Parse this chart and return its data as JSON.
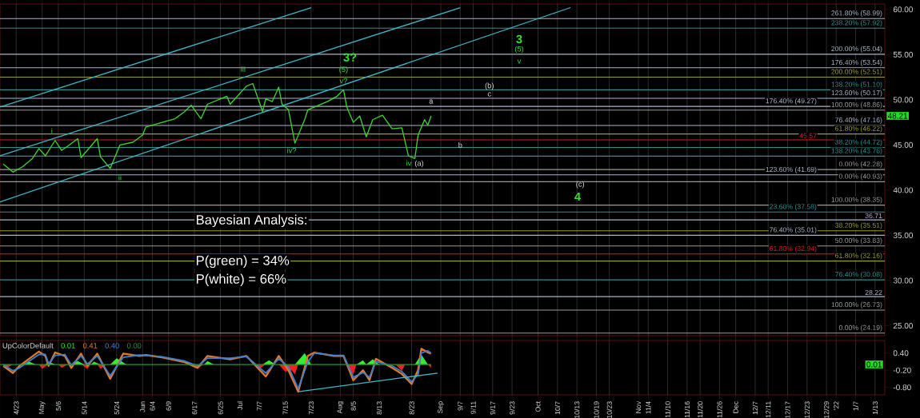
{
  "chart_data": [
    {
      "type": "line",
      "xlim": [
        "2021-04-18",
        "2022-01-16"
      ],
      "ylim": [
        23.9,
        60.6
      ],
      "tick_labels": "y",
      "grid": "x",
      "xticks": [
        {
          "value": "2021-04-23",
          "label": null
        },
        {
          "value": "2021-05-01",
          "label": null
        },
        {
          "value": "2021-05-06",
          "label": null
        },
        {
          "value": "2021-05-14",
          "label": null
        },
        {
          "value": "2021-05-24",
          "label": null
        },
        {
          "value": "2021-06-01",
          "label": null
        },
        {
          "value": "2021-06-04",
          "label": null
        },
        {
          "value": "2021-06-09",
          "label": null
        },
        {
          "value": "2021-06-17",
          "label": null
        },
        {
          "value": "2021-06-25",
          "label": null
        },
        {
          "value": "2021-07-01",
          "label": null
        },
        {
          "value": "2021-07-07",
          "label": null
        },
        {
          "value": "2021-07-15",
          "label": null
        },
        {
          "value": "2021-07-23",
          "label": null
        },
        {
          "value": "2021-08-01",
          "label": null
        },
        {
          "value": "2021-08-05",
          "label": null
        },
        {
          "value": "2021-08-13",
          "label": null
        },
        {
          "value": "2021-08-23",
          "label": null
        },
        {
          "value": "2021-09-01",
          "label": null
        },
        {
          "value": "2021-09-07",
          "label": null
        },
        {
          "value": "2021-09-11",
          "label": null
        },
        {
          "value": "2021-09-17",
          "label": null
        },
        {
          "value": "2021-09-23",
          "label": null
        },
        {
          "value": "2021-10-01",
          "label": null
        },
        {
          "value": "2021-10-07",
          "label": null
        },
        {
          "value": "2021-10-13",
          "label": null
        },
        {
          "value": "2021-10-19",
          "label": null
        },
        {
          "value": "2021-10-23",
          "label": null
        },
        {
          "value": "2021-11-01",
          "label": null
        },
        {
          "value": "2021-11-04",
          "label": null
        },
        {
          "value": "2021-11-10",
          "label": null
        },
        {
          "value": "2021-11-16",
          "label": null
        },
        {
          "value": "2021-11-20",
          "label": null
        },
        {
          "value": "2021-11-26",
          "label": null
        },
        {
          "value": "2021-12-01",
          "label": null
        },
        {
          "value": "2021-12-07",
          "label": null
        },
        {
          "value": "2021-12-11",
          "label": null
        },
        {
          "value": "2021-12-17",
          "label": null
        },
        {
          "value": "2021-12-23",
          "label": null
        },
        {
          "value": "2021-12-29",
          "label": null
        },
        {
          "value": "2022-01-01",
          "label": null
        },
        {
          "value": "2022-01-07",
          "label": null
        },
        {
          "value": "2022-01-13",
          "label": null
        }
      ],
      "yticks": [
        {
          "value": 25,
          "label": "25.00"
        },
        {
          "value": 30,
          "label": "30.00"
        },
        {
          "value": 35,
          "label": "35.00"
        },
        {
          "value": 40,
          "label": "40.00"
        },
        {
          "value": 45,
          "label": "45.00"
        },
        {
          "value": 50,
          "label": "50.00"
        },
        {
          "value": 55,
          "label": "55.00"
        },
        {
          "value": 60,
          "label": "60.00"
        }
      ],
      "series": [
        {
          "color": "#3fd62f",
          "x": [
            "2021-04-19",
            "2021-04-22",
            "2021-04-25",
            "2021-04-28",
            "2021-04-30",
            "2021-05-02",
            "2021-05-05",
            "2021-05-07",
            "2021-05-09",
            "2021-05-12",
            "2021-05-13",
            "2021-05-18",
            "2021-05-19",
            "2021-05-22",
            "2021-05-25",
            "2021-05-29",
            "2021-06-01",
            "2021-06-02",
            "2021-06-07",
            "2021-06-11",
            "2021-06-14",
            "2021-06-16",
            "2021-06-19",
            "2021-06-21",
            "2021-06-27",
            "2021-06-28",
            "2021-07-03",
            "2021-07-05",
            "2021-07-08",
            "2021-07-09",
            "2021-07-11",
            "2021-07-13",
            "2021-07-14",
            "2021-07-16",
            "2021-07-18",
            "2021-07-21",
            "2021-07-22",
            "2021-07-28",
            "2021-07-31",
            "2021-08-02",
            "2021-08-03",
            "2021-08-05",
            "2021-08-07",
            "2021-08-09",
            "2021-08-11",
            "2021-08-14",
            "2021-08-17",
            "2021-08-20",
            "2021-08-22",
            "2021-08-24",
            "2021-08-25",
            "2021-08-27",
            "2021-08-28",
            "2021-08-29"
          ],
          "values": [
            42.9,
            42.0,
            42.6,
            43.5,
            44.6,
            43.8,
            45.5,
            44.4,
            44.9,
            45.7,
            43.6,
            45.7,
            43.7,
            42.4,
            45.0,
            45.3,
            46.1,
            47.0,
            47.5,
            47.9,
            48.7,
            49.4,
            47.9,
            49.5,
            50.4,
            49.5,
            51.5,
            51.8,
            48.7,
            50.1,
            49.8,
            51.4,
            49.5,
            48.9,
            45.2,
            47.8,
            48.9,
            49.8,
            50.4,
            51.1,
            49.2,
            47.5,
            48.2,
            45.9,
            47.8,
            48.3,
            46.8,
            46.9,
            43.8,
            43.5,
            46.1,
            47.8,
            47.2,
            48.21
          ]
        },
        {
          "type": "line",
          "color": "#3fb8c8",
          "x": [
            "2021-04-18",
            "2021-10-11"
          ],
          "values": [
            38.7,
            60.2
          ]
        },
        {
          "type": "line",
          "color": "#3fb8c8",
          "x": [
            "2021-04-18",
            "2021-09-07"
          ],
          "values": [
            43.8,
            60.2
          ]
        },
        {
          "type": "line",
          "color": "#3fb8c8",
          "x": [
            "2021-04-18",
            "2021-07-23"
          ],
          "values": [
            49.2,
            60.2
          ]
        }
      ],
      "ref_lines": [
        {
          "axis": "y",
          "value": 58.99,
          "label": "261.80% (58.99)",
          "color": "#aab4c8"
        },
        {
          "axis": "y",
          "value": 57.92,
          "label": "238.20% (57.92)",
          "color": "#2f8f8f"
        },
        {
          "axis": "y",
          "value": 55.04,
          "label": "200.00% (55.04)",
          "color": "#aab4c8"
        },
        {
          "axis": "y",
          "value": 53.54,
          "label": "176.40% (53.54)",
          "color": "#aab4c8"
        },
        {
          "axis": "y",
          "value": 52.51,
          "label": "200.00% (52.51)",
          "color": "#9a9a30"
        },
        {
          "axis": "y",
          "value": 51.1,
          "label": "138.20% (51.10)",
          "color": "#2f8f8f"
        },
        {
          "axis": "y",
          "value": 50.17,
          "label": "123.60% (50.17)",
          "color": "#aab4c8"
        },
        {
          "axis": "y",
          "value": 49.27,
          "label": "176.40% (49.27)",
          "color": "#aab4c8"
        },
        {
          "axis": "y",
          "value": 48.86,
          "label": "100.00% (48.86)",
          "color": "#9a9a9a"
        },
        {
          "axis": "y",
          "value": 47.16,
          "label": "76.40% (47.16)",
          "color": "#aab4c8"
        },
        {
          "axis": "y",
          "value": 46.22,
          "label": "61.80% (46.22)",
          "color": "#9a9a30"
        },
        {
          "axis": "y",
          "value": 45.57,
          "label": "45.57",
          "color": "#d02020"
        },
        {
          "axis": "y",
          "value": 44.72,
          "label": "38.20% (44.72)",
          "color": "#2f8f8f"
        },
        {
          "axis": "y",
          "value": 43.76,
          "label": "138.20% (43.76)",
          "color": "#2f8f8f"
        },
        {
          "axis": "y",
          "value": 42.28,
          "label": "0.00% (42.28)",
          "color": "#9a9a9a"
        },
        {
          "axis": "y",
          "value": 41.69,
          "label": "123.60% (41.69)",
          "color": "#aab4c8"
        },
        {
          "axis": "y",
          "value": 40.93,
          "label": "0.00% (40.93)",
          "color": "#9a9a9a"
        },
        {
          "axis": "y",
          "value": 38.35,
          "label": "100.00% (38.35)",
          "color": "#9a9a9a"
        },
        {
          "axis": "y",
          "value": 37.58,
          "label": "23.60% (37.58)",
          "color": "#2f8f8f"
        },
        {
          "axis": "y",
          "value": 36.71,
          "label": "36.71",
          "color": "#aab4c8"
        },
        {
          "axis": "y",
          "value": 35.51,
          "label": "38.20% (35.51)",
          "color": "#9a9a30"
        },
        {
          "axis": "y",
          "value": 35.01,
          "label": "76.40% (35.01)",
          "color": "#aab4c8"
        },
        {
          "axis": "y",
          "value": 33.83,
          "label": "50.00% (33.83)",
          "color": "#9a9a9a"
        },
        {
          "axis": "y",
          "value": 32.94,
          "label": "61.80% (32.94)",
          "color": "#d02020"
        },
        {
          "axis": "y",
          "value": 32.16,
          "label": "61.80% (32.16)",
          "color": "#9a9a30"
        },
        {
          "axis": "y",
          "value": 30.08,
          "label": "76.40% (30.08)",
          "color": "#2f8f8f"
        },
        {
          "axis": "y",
          "value": 28.22,
          "label": "28.22",
          "color": "#aab4c8"
        },
        {
          "axis": "y",
          "value": 26.73,
          "label": "100.00% (26.73)",
          "color": "#9a9a9a"
        },
        {
          "axis": "y",
          "value": 24.19,
          "label": "0.00% (24.19)",
          "color": "#9a9a9a"
        }
      ],
      "annotations": [
        {
          "text": "i",
          "x": "2021-05-04",
          "y": 46.6
        },
        {
          "text": "ii",
          "x": "2021-05-25",
          "y": 41.4
        },
        {
          "text": "iii",
          "x": "2021-07-02",
          "y": 53.4
        },
        {
          "text": "iv?",
          "x": "2021-07-17",
          "y": 44.4
        },
        {
          "text": "v?",
          "x": "2021-08-02",
          "y": 52.1
        },
        {
          "text": "(5)",
          "x": "2021-08-02",
          "y": 53.3
        },
        {
          "text": "3?",
          "x": "2021-08-04",
          "y": 54.7
        },
        {
          "text": "a",
          "x": "2021-08-29",
          "y": 49.8
        },
        {
          "text": "b",
          "x": "2021-09-07",
          "y": 45.0
        },
        {
          "text": "(b)",
          "x": "2021-09-16",
          "y": 51.5
        },
        {
          "text": "c",
          "x": "2021-09-16",
          "y": 50.6
        },
        {
          "text": "(c)",
          "x": "2021-10-14",
          "y": 40.6
        },
        "iv",
        "(a)",
        "3",
        "(5)",
        "v",
        "4",
        "48.21",
        "Bayesian Analysis:",
        "P(green) =  34%",
        "P(white) = 66%"
      ]
    },
    {
      "type": "line",
      "title": "UpColorDefault",
      "xlim": [
        "2021-04-18",
        "2022-01-16"
      ],
      "ylim": [
        -1.06,
        0.84
      ],
      "grid": "x",
      "legend": "top left",
      "xticks": [
        {
          "value": "2021-04-23",
          "label": "4/23"
        },
        {
          "value": "2021-05-01",
          "label": "May"
        },
        {
          "value": "2021-05-06",
          "label": "5/6"
        },
        {
          "value": "2021-05-14",
          "label": "5/14"
        },
        {
          "value": "2021-05-24",
          "label": "5/24"
        },
        {
          "value": "2021-06-01",
          "label": "Jun"
        },
        {
          "value": "2021-06-04",
          "label": "6/4"
        },
        {
          "value": "2021-06-09",
          "label": "6/9"
        },
        {
          "value": "2021-06-17",
          "label": "6/17"
        },
        {
          "value": "2021-06-25",
          "label": "6/25"
        },
        {
          "value": "2021-07-01",
          "label": "Jul"
        },
        {
          "value": "2021-07-07",
          "label": "7/7"
        },
        {
          "value": "2021-07-15",
          "label": "7/15"
        },
        {
          "value": "2021-07-23",
          "label": "7/23"
        },
        {
          "value": "2021-08-01",
          "label": "Aug"
        },
        {
          "value": "2021-08-05",
          "label": "8/5"
        },
        {
          "value": "2021-08-13",
          "label": "8/13"
        },
        {
          "value": "2021-08-23",
          "label": "8/23"
        },
        {
          "value": "2021-09-01",
          "label": "Sep"
        },
        {
          "value": "2021-09-07",
          "label": "9/7"
        },
        {
          "value": "2021-09-11",
          "label": "9/11"
        },
        {
          "value": "2021-09-17",
          "label": "9/17"
        },
        {
          "value": "2021-09-23",
          "label": "9/23"
        },
        {
          "value": "2021-10-01",
          "label": "Oct"
        },
        {
          "value": "2021-10-07",
          "label": "10/7"
        },
        {
          "value": "2021-10-13",
          "label": "10/13"
        },
        {
          "value": "2021-10-19",
          "label": "10/19"
        },
        {
          "value": "2021-10-23",
          "label": "10/23"
        },
        {
          "value": "2021-11-01",
          "label": "Nov"
        },
        {
          "value": "2021-11-04",
          "label": "11/4"
        },
        {
          "value": "2021-11-10",
          "label": "11/10"
        },
        {
          "value": "2021-11-16",
          "label": "11/16"
        },
        {
          "value": "2021-11-20",
          "label": "11/20"
        },
        {
          "value": "2021-11-26",
          "label": "11/26"
        },
        {
          "value": "2021-12-01",
          "label": "Dec"
        },
        {
          "value": "2021-12-07",
          "label": "12/7"
        },
        {
          "value": "2021-12-11",
          "label": "12/11"
        },
        {
          "value": "2021-12-17",
          "label": "12/17"
        },
        {
          "value": "2021-12-23",
          "label": "12/23"
        },
        {
          "value": "2021-12-29",
          "label": "12/29"
        },
        {
          "value": "2022-01-01",
          "label": "'22"
        },
        {
          "value": "2022-01-07",
          "label": "1/7"
        },
        {
          "value": "2022-01-13",
          "label": "1/13"
        }
      ],
      "yticks": [
        {
          "value": 0.4,
          "label": "0.40"
        },
        {
          "value": -0.2,
          "label": "-0.20"
        },
        {
          "value": -0.8,
          "label": "-0.80"
        }
      ],
      "series": [
        {
          "type": "area",
          "name": "0.01",
          "color": "#33ee33",
          "x": [
            "2021-04-24",
            "2021-04-27",
            "2021-04-29",
            "2021-05-02",
            "2021-05-03",
            "2021-05-05",
            "2021-05-10",
            "2021-05-12",
            "2021-05-14",
            "2021-05-16",
            "2021-05-17",
            "2021-05-19",
            "2021-05-22",
            "2021-05-24",
            "2021-05-27",
            "2021-06-20",
            "2021-06-21",
            "2021-06-23",
            "2021-07-08",
            "2021-07-10",
            "2021-07-12",
            "2021-07-18",
            "2021-07-21",
            "2021-07-23",
            "2021-08-06",
            "2021-08-08",
            "2021-08-09",
            "2021-08-11",
            "2021-08-13",
            "2021-08-24",
            "2021-08-26",
            "2021-08-28"
          ],
          "values": [
            0,
            0.1,
            0,
            0,
            0.1,
            0,
            0,
            0.12,
            0,
            0,
            0.1,
            0,
            0,
            0.22,
            0,
            0,
            0.12,
            0,
            0,
            0.15,
            0,
            0,
            0.4,
            0,
            0,
            0.15,
            0,
            0.18,
            0,
            0,
            0.35,
            0
          ]
        },
        {
          "type": "area",
          "color": "#ee2222",
          "x": [
            "2021-04-19",
            "2021-04-20",
            "2021-04-22",
            "2021-04-30",
            "2021-05-01",
            "2021-05-03",
            "2021-05-06",
            "2021-05-07",
            "2021-05-09",
            "2021-05-13",
            "2021-05-15",
            "2021-05-16",
            "2021-05-18",
            "2021-05-19",
            "2021-05-21",
            "2021-06-17",
            "2021-06-18",
            "2021-06-20",
            "2021-07-05",
            "2021-07-07",
            "2021-07-09",
            "2021-07-13",
            "2021-07-15",
            "2021-07-17",
            "2021-07-18",
            "2021-07-19",
            "2021-08-03",
            "2021-08-04",
            "2021-08-05",
            "2021-08-06",
            "2021-08-18",
            "2021-08-20",
            "2021-08-21",
            "2021-08-28",
            "2021-08-29"
          ],
          "values": [
            0,
            -0.12,
            0,
            0,
            -0.15,
            0,
            0,
            -0.12,
            0,
            0,
            -0.15,
            0,
            0,
            -0.15,
            0,
            0,
            -0.12,
            0,
            0,
            -0.15,
            0,
            0,
            -0.25,
            -0.2,
            -0.35,
            0,
            0,
            -0.25,
            -0.35,
            0,
            0,
            -0.22,
            0,
            0,
            -0.12
          ]
        },
        {
          "type": "line",
          "name": "0.41",
          "color": "#e07a28",
          "x": [
            "2021-04-19",
            "2021-04-22",
            "2021-04-24",
            "2021-04-30",
            "2021-05-02",
            "2021-05-03",
            "2021-05-05",
            "2021-05-08",
            "2021-05-10",
            "2021-05-13",
            "2021-05-15",
            "2021-05-18",
            "2021-05-22",
            "2021-05-26",
            "2021-05-31",
            "2021-06-02",
            "2021-06-07",
            "2021-06-14",
            "2021-06-18",
            "2021-06-21",
            "2021-06-28",
            "2021-07-03",
            "2021-07-09",
            "2021-07-13",
            "2021-07-16",
            "2021-07-19",
            "2021-07-22",
            "2021-07-24",
            "2021-07-30",
            "2021-08-02",
            "2021-08-05",
            "2021-08-08",
            "2021-08-10",
            "2021-08-12",
            "2021-08-17",
            "2021-08-20",
            "2021-08-23",
            "2021-08-25",
            "2021-08-26",
            "2021-08-28",
            "2021-08-29"
          ],
          "values": [
            -0.05,
            -0.3,
            -0.05,
            0.45,
            0.3,
            -0.05,
            0.42,
            0.3,
            -0.12,
            0.38,
            -0.05,
            0.38,
            -0.5,
            0.38,
            0.3,
            0.33,
            0.25,
            0.08,
            -0.12,
            0.3,
            0.18,
            0.3,
            -0.42,
            0.3,
            -0.2,
            -0.95,
            0.3,
            0.42,
            0.3,
            0.3,
            -0.55,
            -0.2,
            -0.55,
            0.2,
            -0.12,
            -0.33,
            -0.68,
            -0.2,
            0.55,
            0.42,
            0.38
          ]
        },
        {
          "type": "line",
          "name": "0.40",
          "color": "#3f7fd0",
          "x": [
            "2021-04-19",
            "2021-04-22",
            "2021-04-24",
            "2021-04-30",
            "2021-05-02",
            "2021-05-03",
            "2021-05-05",
            "2021-05-08",
            "2021-05-10",
            "2021-05-13",
            "2021-05-15",
            "2021-05-18",
            "2021-05-22",
            "2021-05-26",
            "2021-05-31",
            "2021-06-02",
            "2021-06-07",
            "2021-06-14",
            "2021-06-18",
            "2021-06-21",
            "2021-06-28",
            "2021-07-03",
            "2021-07-09",
            "2021-07-13",
            "2021-07-16",
            "2021-07-19",
            "2021-07-22",
            "2021-07-24",
            "2021-07-30",
            "2021-08-02",
            "2021-08-05",
            "2021-08-08",
            "2021-08-10",
            "2021-08-12",
            "2021-08-17",
            "2021-08-20",
            "2021-08-23",
            "2021-08-25",
            "2021-08-26",
            "2021-08-28",
            "2021-08-29"
          ],
          "values": [
            0,
            -0.22,
            -0.12,
            0.35,
            0.35,
            0.02,
            0.32,
            0.35,
            -0.02,
            0.3,
            0.02,
            0.3,
            -0.4,
            0.25,
            0.33,
            0.32,
            0.27,
            0.12,
            -0.05,
            0.22,
            0.22,
            0.28,
            -0.3,
            0.2,
            -0.08,
            -0.85,
            0.1,
            0.4,
            0.32,
            0.32,
            -0.45,
            -0.28,
            -0.45,
            0.1,
            -0.05,
            -0.25,
            -0.6,
            -0.35,
            0.4,
            0.48,
            0.4
          ]
        },
        {
          "type": "line",
          "name": "0.00",
          "color": "#2f8f2f",
          "x": [
            "2021-04-18",
            "2021-08-29"
          ],
          "values": [
            0,
            0
          ]
        },
        {
          "type": "line",
          "color": "#3fb8c8",
          "x": [
            "2021-07-19",
            "2021-08-31"
          ],
          "values": [
            -0.95,
            -0.3
          ]
        }
      ],
      "annotations": [
        "0.01"
      ]
    }
  ]
}
